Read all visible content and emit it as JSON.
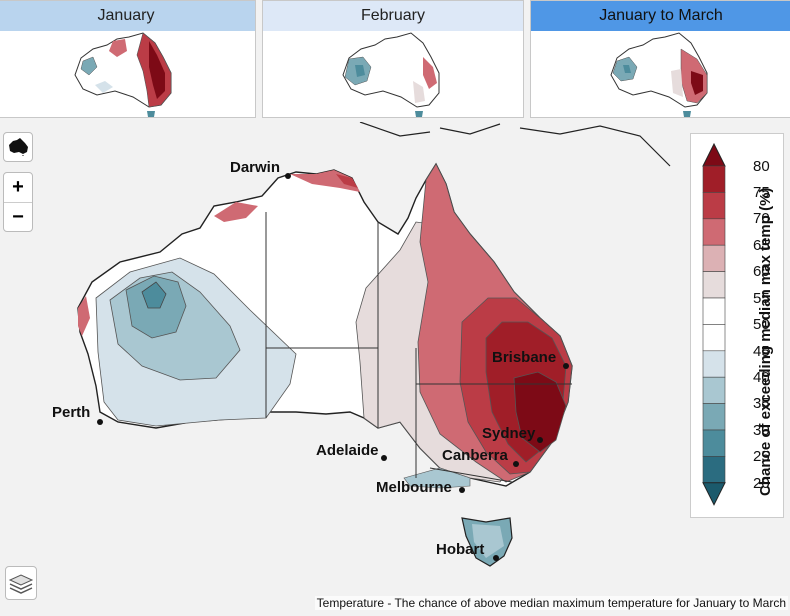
{
  "tabs": [
    {
      "label": "January"
    },
    {
      "label": "February"
    },
    {
      "label": "January to March"
    }
  ],
  "controls": {
    "zoom_in": "+",
    "zoom_out": "−"
  },
  "cities": [
    {
      "name": "Darwin"
    },
    {
      "name": "Perth"
    },
    {
      "name": "Adelaide"
    },
    {
      "name": "Melbourne"
    },
    {
      "name": "Hobart"
    },
    {
      "name": "Brisbane"
    },
    {
      "name": "Sydney"
    },
    {
      "name": "Canberra"
    }
  ],
  "legend": {
    "title": "Chance of exceeding median max temp (%)",
    "ticks": [
      "80",
      "75",
      "70",
      "65",
      "60",
      "55",
      "50",
      "45",
      "40",
      "35",
      "30",
      "25",
      "20"
    ],
    "colors": [
      "#7d0a16",
      "#a01e28",
      "#bb3c46",
      "#cf6a73",
      "#dcb1b4",
      "#e6dcdc",
      "#ffffff",
      "#ffffff",
      "#d5e2ea",
      "#a9c7d1",
      "#7aa9b5",
      "#4d8c9c",
      "#2b6c80",
      "#1b5a6c"
    ]
  },
  "caption": "Temperature - The chance of above median maximum temperature for January to March"
}
